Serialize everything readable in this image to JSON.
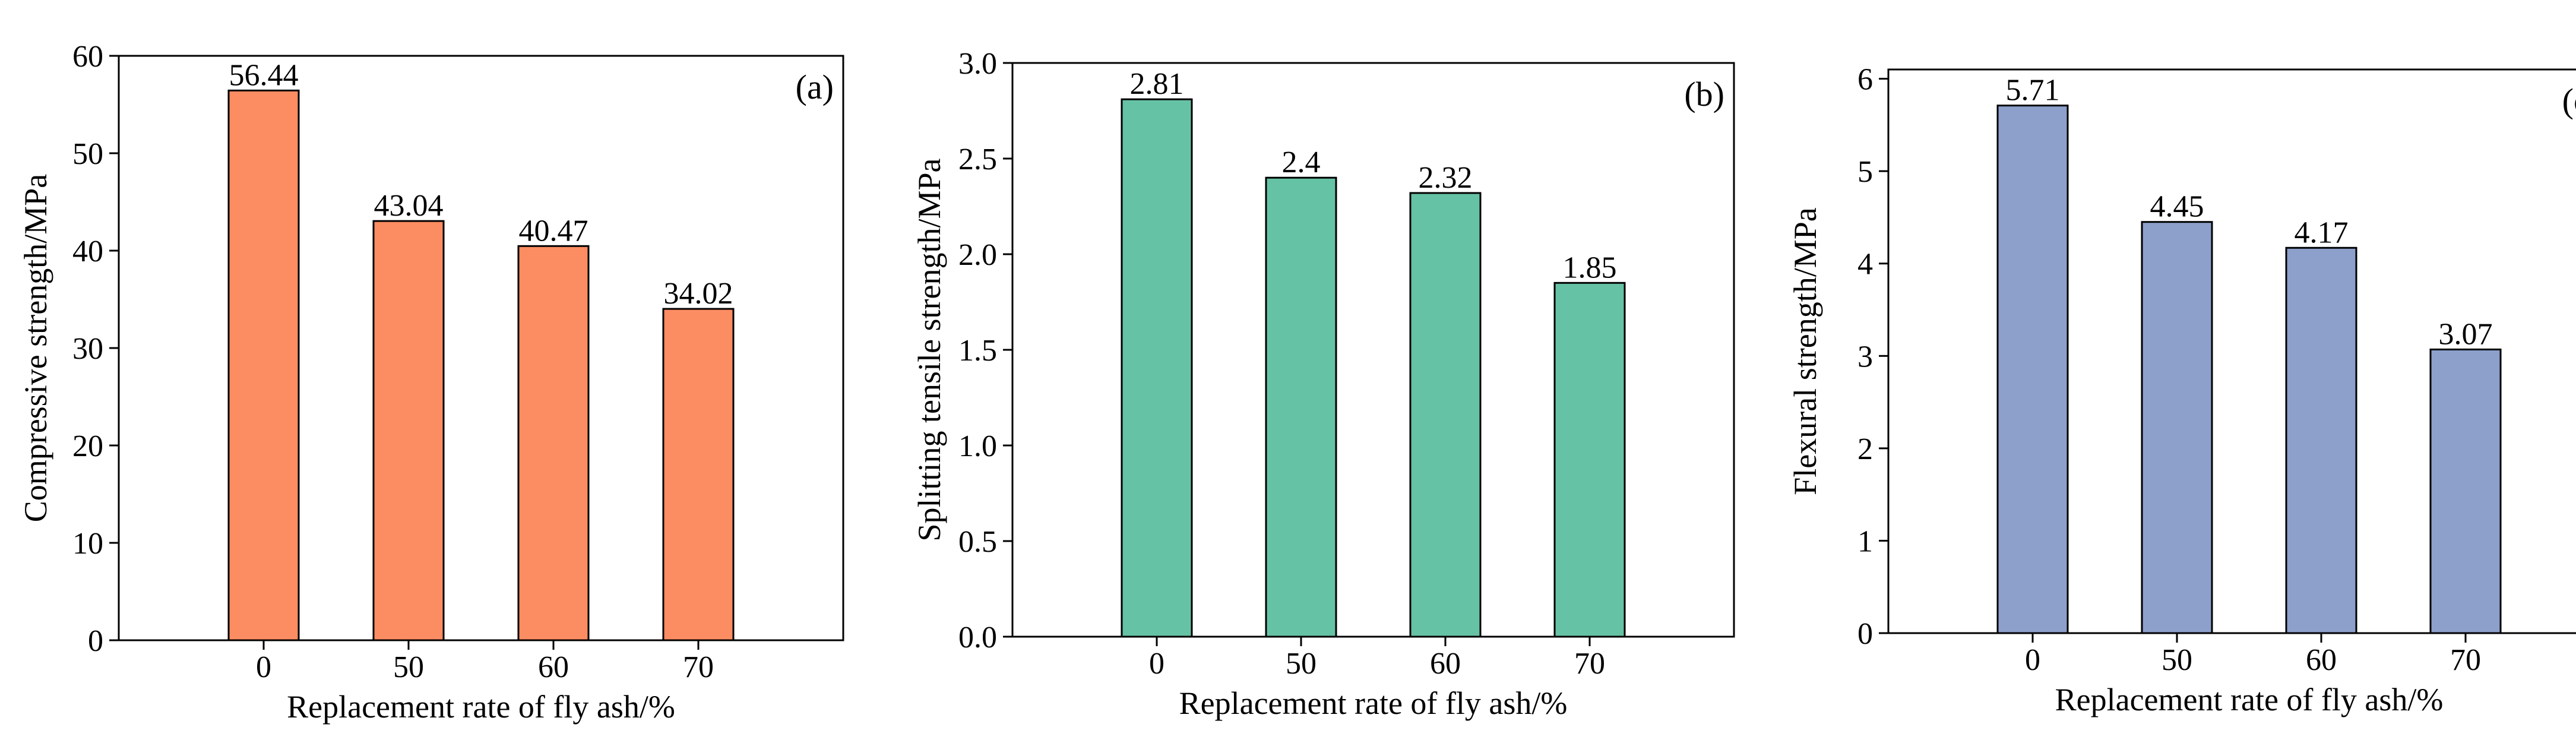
{
  "chart_data": [
    {
      "type": "bar",
      "panel_label": "(a)",
      "title": "",
      "xlabel": "Replacement rate of fly ash/%",
      "ylabel": "Compressive strength/MPa",
      "categories": [
        "0",
        "50",
        "60",
        "70"
      ],
      "values": [
        56.44,
        43.04,
        40.47,
        34.02
      ],
      "value_labels": [
        "56.44",
        "43.04",
        "40.47",
        "34.02"
      ],
      "ylim": [
        0,
        60
      ],
      "yticks": [
        0,
        10,
        20,
        30,
        40,
        50,
        60
      ],
      "ytick_labels": [
        "0",
        "10",
        "20",
        "30",
        "40",
        "50",
        "60"
      ],
      "bar_color": "#fc8d62",
      "grid": false,
      "legend": "none"
    },
    {
      "type": "bar",
      "panel_label": "(b)",
      "title": "",
      "xlabel": "Replacement rate of fly ash/%",
      "ylabel": "Splitting tensile strength/MPa",
      "categories": [
        "0",
        "50",
        "60",
        "70"
      ],
      "values": [
        2.81,
        2.4,
        2.32,
        1.85
      ],
      "value_labels": [
        "2.81",
        "2.4",
        "2.32",
        "1.85"
      ],
      "ylim": [
        0,
        3.0
      ],
      "yticks": [
        0,
        0.5,
        1.0,
        1.5,
        2.0,
        2.5,
        3.0
      ],
      "ytick_labels": [
        "0.0",
        "0.5",
        "1.0",
        "1.5",
        "2.0",
        "2.5",
        "3.0"
      ],
      "bar_color": "#66c2a5",
      "grid": false,
      "legend": "none"
    },
    {
      "type": "bar",
      "panel_label": "(c)",
      "title": "",
      "xlabel": "Replacement rate of fly ash/%",
      "ylabel": "Flexural strength/MPa",
      "categories": [
        "0",
        "50",
        "60",
        "70"
      ],
      "values": [
        5.71,
        4.45,
        4.17,
        3.07
      ],
      "value_labels": [
        "5.71",
        "4.45",
        "4.17",
        "3.07"
      ],
      "ylim": [
        0,
        6.1
      ],
      "yticks": [
        0,
        1,
        2,
        3,
        4,
        5,
        6
      ],
      "ytick_labels": [
        "0",
        "1",
        "2",
        "3",
        "4",
        "5",
        "6"
      ],
      "bar_color": "#8da0cb",
      "grid": false,
      "legend": "none"
    }
  ]
}
